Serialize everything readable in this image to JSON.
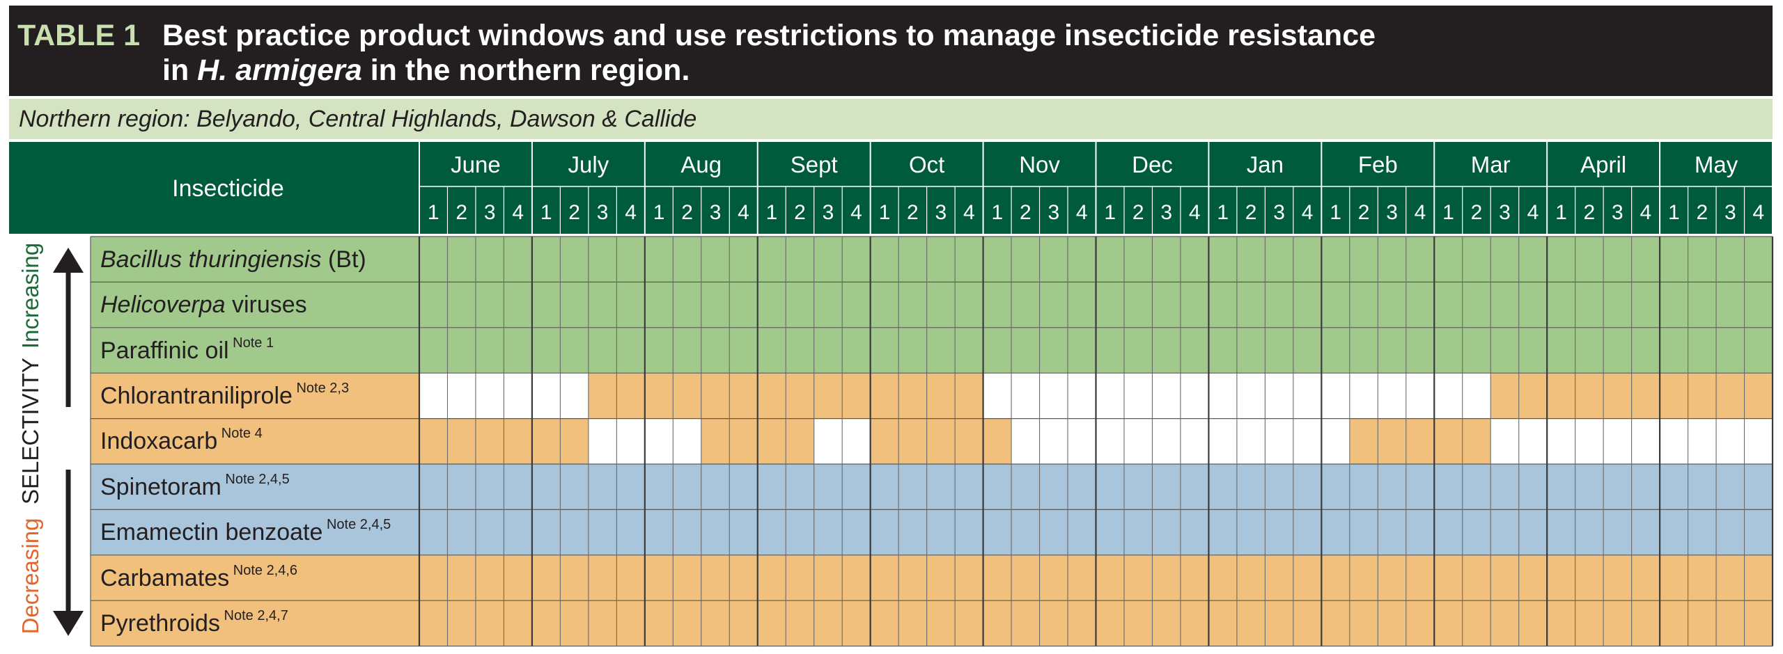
{
  "header": {
    "table_label": "TABLE 1",
    "title_line1": "Best practice product windows and use restrictions to manage insecticide resistance",
    "title_line2_prefix": "in ",
    "title_line2_italic": "H. armigera",
    "title_line2_suffix": " in the northern region."
  },
  "region": "Northern region: Belyando, Central Highlands, Dawson & Callide",
  "table": {
    "insecticide_header": "Insecticide",
    "months": [
      "June",
      "July",
      "Aug",
      "Sept",
      "Oct",
      "Nov",
      "Dec",
      "Jan",
      "Feb",
      "Mar",
      "April",
      "May"
    ],
    "weeks": [
      "1",
      "2",
      "3",
      "4"
    ],
    "rows": [
      {
        "italic": "Bacillus thuringiensis",
        "text": " (Bt)",
        "note": "",
        "color": "green",
        "pattern": "111111111111111111111111111111111111111111111111"
      },
      {
        "italic": "Helicoverpa",
        "text": " viruses",
        "note": "",
        "color": "green",
        "pattern": "111111111111111111111111111111111111111111111111"
      },
      {
        "italic": "",
        "text": "Paraffinic oil",
        "note": "Note 1",
        "color": "green",
        "pattern": "111111111111111111111111111111111111111111111111"
      },
      {
        "italic": "",
        "text": "Chlorantraniliprole",
        "note": "Note 2,3",
        "color": "orange",
        "pattern": "000000111111111111110000000000000000001111111111"
      },
      {
        "italic": "",
        "text": "Indoxacarb",
        "note": "Note 4",
        "color": "orange",
        "pattern": "111111000011110011111000000000000111110000000000"
      },
      {
        "italic": "",
        "text": "Spinetoram",
        "note": "Note 2,4,5",
        "color": "blue",
        "pattern": "111111111111111111111111111111111111111111111111"
      },
      {
        "italic": "",
        "text": "Emamectin benzoate",
        "note": "Note 2,4,5",
        "color": "blue",
        "pattern": "111111111111111111111111111111111111111111111111"
      },
      {
        "italic": "",
        "text": "Carbamates",
        "note": "Note 2,4,6",
        "color": "orange",
        "pattern": "111111111111111111111111111111111111111111111111"
      },
      {
        "italic": "",
        "text": "Pyrethroids",
        "note": "Note 2,4,7",
        "color": "orange",
        "pattern": "111111111111111111111111111111111111111111111111"
      }
    ]
  },
  "selectivity": {
    "label": "SELECTIVITY",
    "increasing": "Increasing",
    "decreasing": "Decreasing"
  },
  "colors": {
    "title_bg": "#231f20",
    "header_green": "#005a3c",
    "region_bg": "#d4e4c3",
    "green": "#a0c98b",
    "orange": "#f0c07c",
    "blue": "#a8c5dc",
    "increasing_text": "#1e6b3a",
    "decreasing_text": "#e2662d"
  }
}
